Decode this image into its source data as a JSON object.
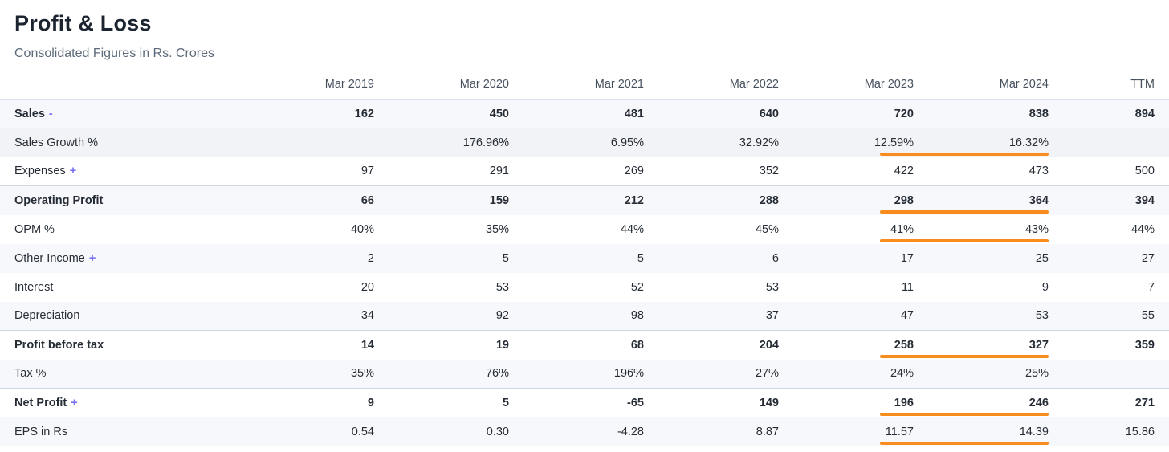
{
  "colors": {
    "accent_orange": "#f88c1d",
    "toggle_purple": "#7a70f0",
    "stripe": "#f7f8fb",
    "inserted_row_bg": "#f2f3f6",
    "separator": "#ccd6e1"
  },
  "header": {
    "title": "Profit & Loss",
    "subtitle": "Consolidated Figures in Rs. Crores"
  },
  "table": {
    "columns": [
      "Mar 2019",
      "Mar 2020",
      "Mar 2021",
      "Mar 2022",
      "Mar 2023",
      "Mar 2024",
      "TTM"
    ],
    "rows": [
      {
        "label": "Sales",
        "toggle": "-",
        "bold": true,
        "striped": true,
        "inserted": false,
        "underline": false,
        "separator_above": false,
        "values": [
          "162",
          "450",
          "481",
          "640",
          "720",
          "838",
          "894"
        ]
      },
      {
        "label": "Sales Growth %",
        "toggle": "",
        "bold": false,
        "striped": false,
        "inserted": true,
        "underline": true,
        "separator_above": false,
        "values": [
          "",
          "176.96%",
          "6.95%",
          "32.92%",
          "12.59%",
          "16.32%",
          ""
        ]
      },
      {
        "label": "Expenses",
        "toggle": "+",
        "bold": false,
        "striped": false,
        "inserted": false,
        "underline": false,
        "separator_above": false,
        "values": [
          "97",
          "291",
          "269",
          "352",
          "422",
          "473",
          "500"
        ]
      },
      {
        "label": "Operating Profit",
        "toggle": "",
        "bold": true,
        "striped": true,
        "inserted": false,
        "underline": true,
        "separator_above": true,
        "values": [
          "66",
          "159",
          "212",
          "288",
          "298",
          "364",
          "394"
        ]
      },
      {
        "label": "OPM %",
        "toggle": "",
        "bold": false,
        "striped": false,
        "inserted": false,
        "underline": true,
        "separator_above": false,
        "values": [
          "40%",
          "35%",
          "44%",
          "45%",
          "41%",
          "43%",
          "44%"
        ]
      },
      {
        "label": "Other Income",
        "toggle": "+",
        "bold": false,
        "striped": true,
        "inserted": false,
        "underline": false,
        "separator_above": false,
        "values": [
          "2",
          "5",
          "5",
          "6",
          "17",
          "25",
          "27"
        ]
      },
      {
        "label": "Interest",
        "toggle": "",
        "bold": false,
        "striped": false,
        "inserted": false,
        "underline": false,
        "separator_above": false,
        "values": [
          "20",
          "53",
          "52",
          "53",
          "11",
          "9",
          "7"
        ]
      },
      {
        "label": "Depreciation",
        "toggle": "",
        "bold": false,
        "striped": true,
        "inserted": false,
        "underline": false,
        "separator_above": false,
        "values": [
          "34",
          "92",
          "98",
          "37",
          "47",
          "53",
          "55"
        ]
      },
      {
        "label": "Profit before tax",
        "toggle": "",
        "bold": true,
        "striped": false,
        "inserted": false,
        "underline": true,
        "separator_above": true,
        "values": [
          "14",
          "19",
          "68",
          "204",
          "258",
          "327",
          "359"
        ]
      },
      {
        "label": "Tax %",
        "toggle": "",
        "bold": false,
        "striped": true,
        "inserted": false,
        "underline": false,
        "separator_above": false,
        "values": [
          "35%",
          "76%",
          "196%",
          "27%",
          "24%",
          "25%",
          ""
        ]
      },
      {
        "label": "Net Profit",
        "toggle": "+",
        "bold": true,
        "striped": false,
        "inserted": false,
        "underline": true,
        "separator_above": true,
        "values": [
          "9",
          "5",
          "-65",
          "149",
          "196",
          "246",
          "271"
        ]
      },
      {
        "label": "EPS in Rs",
        "toggle": "",
        "bold": false,
        "striped": true,
        "inserted": false,
        "underline": true,
        "separator_above": false,
        "values": [
          "0.54",
          "0.30",
          "-4.28",
          "8.87",
          "11.57",
          "14.39",
          "15.86"
        ]
      }
    ]
  }
}
